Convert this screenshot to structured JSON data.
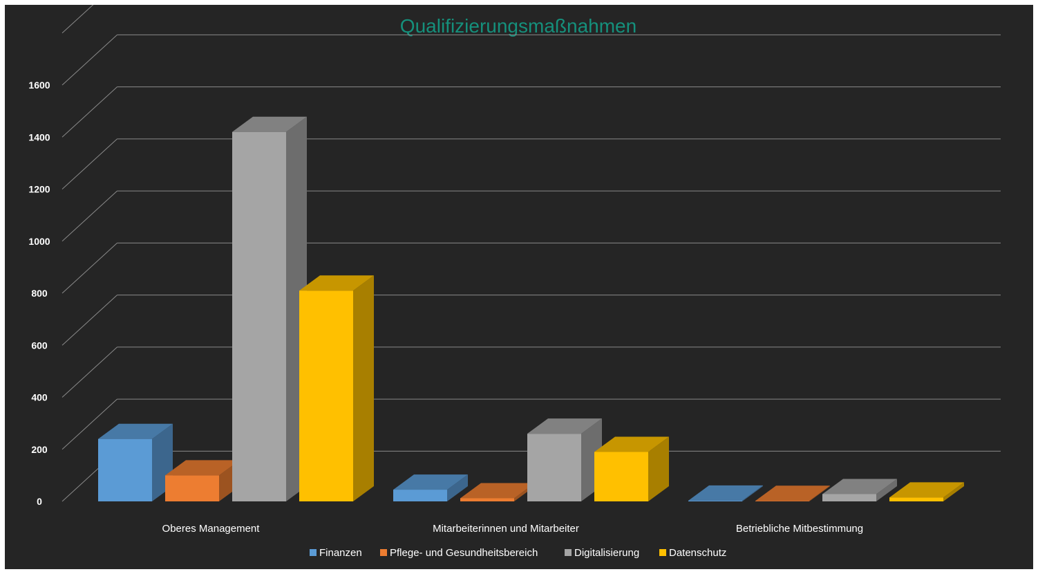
{
  "chart_data": {
    "type": "bar",
    "title": "Qualifizierungsmaßnahmen",
    "xlabel": "",
    "ylabel": "",
    "ylim": [
      0,
      1600
    ],
    "y_ticks": [
      "0",
      "200",
      "400",
      "600",
      "800",
      "1000",
      "1200",
      "1400",
      "1600"
    ],
    "categories": [
      "Oberes Management",
      "Mitarbeiterinnen und Mitarbeiter",
      "Betriebliche Mitbestimmung"
    ],
    "series": [
      {
        "name": "Finanzen",
        "color": "#5b9bd5",
        "values": [
          240,
          45,
          3
        ]
      },
      {
        "name": "Pflege- und Gesundheitsbereich",
        "color": "#ed7d31",
        "values": [
          100,
          12,
          2
        ]
      },
      {
        "name": "Digitalisierung",
        "color": "#a5a5a5",
        "values": [
          1420,
          260,
          28
        ]
      },
      {
        "name": "Datenschutz",
        "color": "#ffc000",
        "values": [
          810,
          190,
          15
        ]
      }
    ],
    "legend_position": "bottom",
    "grid": true,
    "style": "3d-column"
  }
}
